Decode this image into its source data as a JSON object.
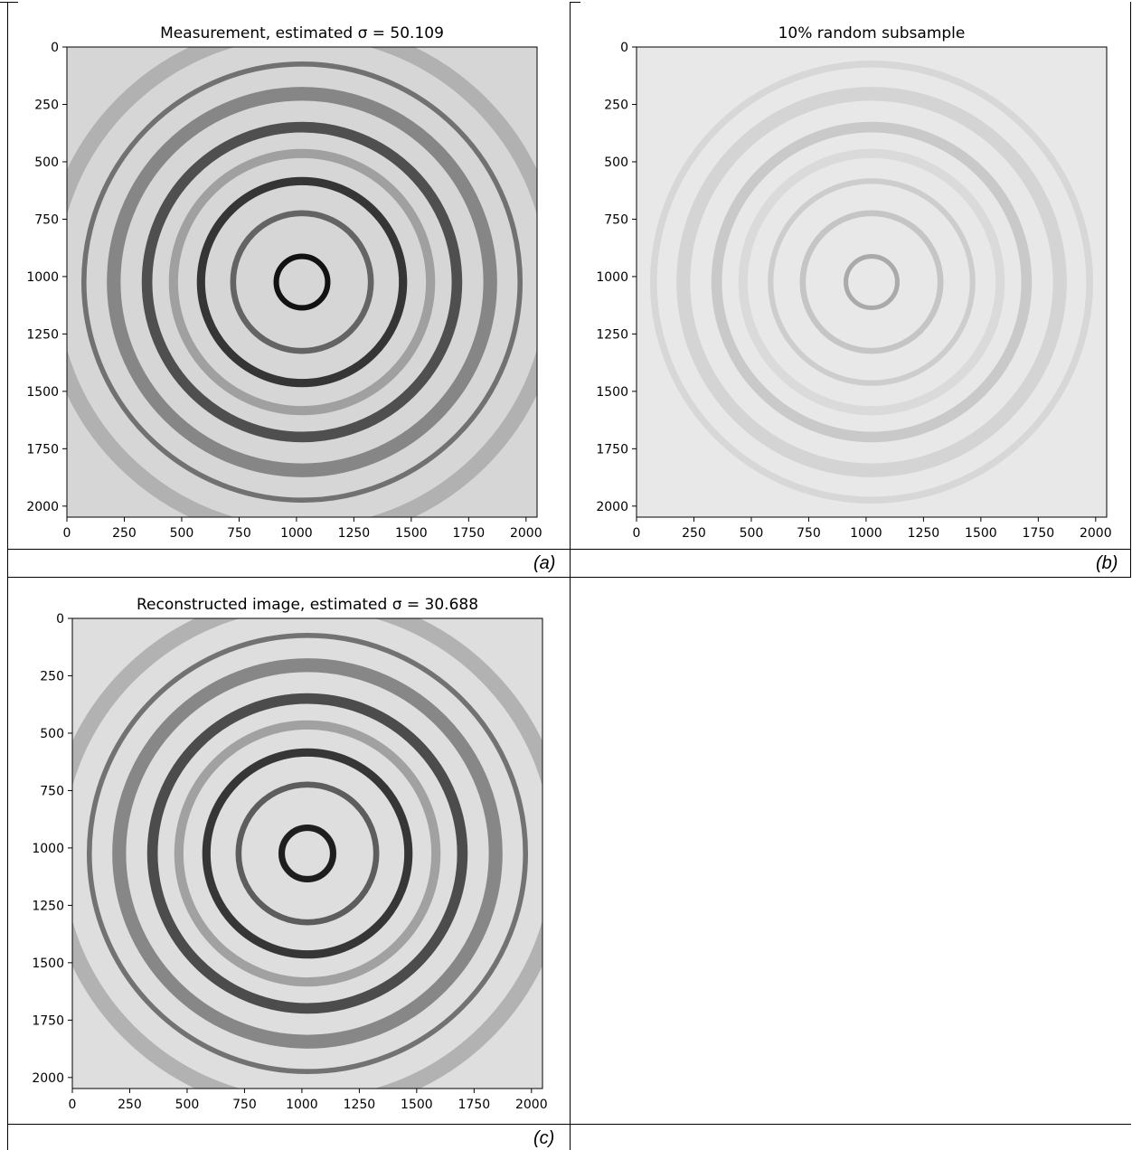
{
  "figure": {
    "panels": [
      {
        "id": "a",
        "caption": "(a)",
        "title": "Measurement, estimated σ = 50.109",
        "image_style": "measurement",
        "description_tick_values": [
          0,
          250,
          500,
          750,
          1000,
          1250,
          1500,
          1750,
          2000
        ]
      },
      {
        "id": "b",
        "caption": "(b)",
        "title": "10% random subsample",
        "image_style": "subsample",
        "description_tick_values": [
          0,
          250,
          500,
          750,
          1000,
          1250,
          1500,
          1750,
          2000
        ]
      },
      {
        "id": "c",
        "caption": "(c)",
        "title": "Reconstructed image, estimated σ = 30.688",
        "image_style": "reconstruction",
        "description_tick_values": [
          0,
          250,
          500,
          750,
          1000,
          1250,
          1500,
          1750,
          2000
        ]
      }
    ]
  },
  "chart_data": [
    {
      "type": "heatmap",
      "title": "Measurement, estimated σ = 50.109",
      "xlim": [
        0,
        2048
      ],
      "ylim": [
        2048,
        0
      ],
      "xticks": [
        0,
        250,
        500,
        750,
        1000,
        1250,
        1500,
        1750,
        2000
      ],
      "yticks": [
        0,
        250,
        500,
        750,
        1000,
        1250,
        1500,
        1750,
        2000
      ],
      "xlabel": "",
      "ylabel": "",
      "colormap": "gray",
      "content": "concentric rings centered near (1024, 1024)"
    },
    {
      "type": "heatmap",
      "title": "10% random subsample",
      "xlim": [
        0,
        2048
      ],
      "ylim": [
        2048,
        0
      ],
      "xticks": [
        0,
        250,
        500,
        750,
        1000,
        1250,
        1500,
        1750,
        2000
      ],
      "yticks": [
        0,
        250,
        500,
        750,
        1000,
        1250,
        1500,
        1750,
        2000
      ],
      "xlabel": "",
      "ylabel": "",
      "colormap": "gray",
      "content": "faint concentric rings, sparse sampling"
    },
    {
      "type": "heatmap",
      "title": "Reconstructed image, estimated σ = 30.688",
      "xlim": [
        0,
        2048
      ],
      "ylim": [
        2048,
        0
      ],
      "xticks": [
        0,
        250,
        500,
        750,
        1000,
        1250,
        1500,
        1750,
        2000
      ],
      "yticks": [
        0,
        250,
        500,
        750,
        1000,
        1250,
        1500,
        1750,
        2000
      ],
      "xlabel": "",
      "ylabel": "",
      "colormap": "gray",
      "content": "concentric rings centered near (1024, 1024)"
    }
  ],
  "colors": {
    "background": "#ffffff",
    "axis": "#000000",
    "image_bg_a": "#dcdcdc",
    "image_bg_b": "#e6e6e6",
    "image_bg_c": "#e0e0e0"
  }
}
